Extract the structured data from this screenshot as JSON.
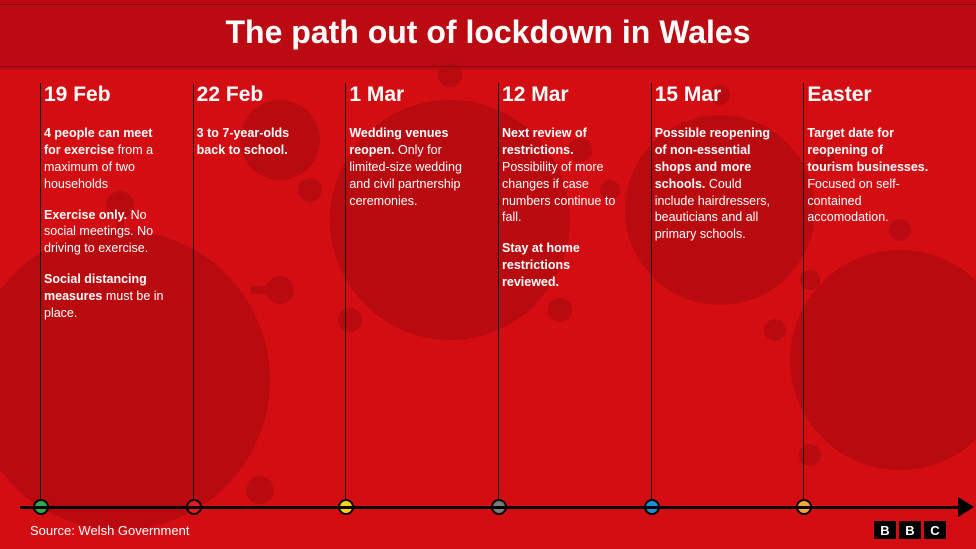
{
  "title": "The path out of lockdown in Wales",
  "source": "Source: Welsh Government",
  "logo": [
    "B",
    "B",
    "C"
  ],
  "background": {
    "base": "#d40d12",
    "band": "#bb0a12",
    "virus_tint": "#b30a10"
  },
  "title_fontsize": 32,
  "date_fontsize": 21,
  "body_fontsize": 12.5,
  "axis_color": "#000000",
  "milestones": [
    {
      "date": "19 Feb",
      "dot_color": "#2fa84f",
      "paragraphs": [
        {
          "bold": "4 people can meet for exercise",
          "rest": " from a maximum of two households"
        },
        {
          "bold": "Exercise only.",
          "rest": " No social meetings. No driving to exercise."
        },
        {
          "bold": "Social distancing measures",
          "rest": " must be in place."
        }
      ]
    },
    {
      "date": "22 Feb",
      "dot_color": "#e31b23",
      "paragraphs": [
        {
          "bold": "3 to 7-year-olds back to school.",
          "rest": ""
        }
      ]
    },
    {
      "date": "1 Mar",
      "dot_color": "#f7d416",
      "paragraphs": [
        {
          "bold": "Wedding venues reopen.",
          "rest": " Only for limited-size wedding and civil partnership ceremonies."
        }
      ]
    },
    {
      "date": "12 Mar",
      "dot_color": "#7a7a7a",
      "paragraphs": [
        {
          "bold": "Next review of restrictions.",
          "rest": " Possibility of more changes if case numbers continue to fall."
        },
        {
          "bold": "Stay at home restrictions reviewed.",
          "rest": ""
        }
      ]
    },
    {
      "date": "15 Mar",
      "dot_color": "#1c8fd6",
      "paragraphs": [
        {
          "bold": "Possible reopening of non-essential shops and more schools.",
          "rest": " Could include hairdressers, beauticians and all primary schools."
        }
      ]
    },
    {
      "date": "Easter",
      "dot_color": "#f2a83b",
      "paragraphs": [
        {
          "bold": "Target date for reopening of tourism businesses.",
          "rest": " Focused on self-contained accomodation."
        }
      ]
    }
  ]
}
